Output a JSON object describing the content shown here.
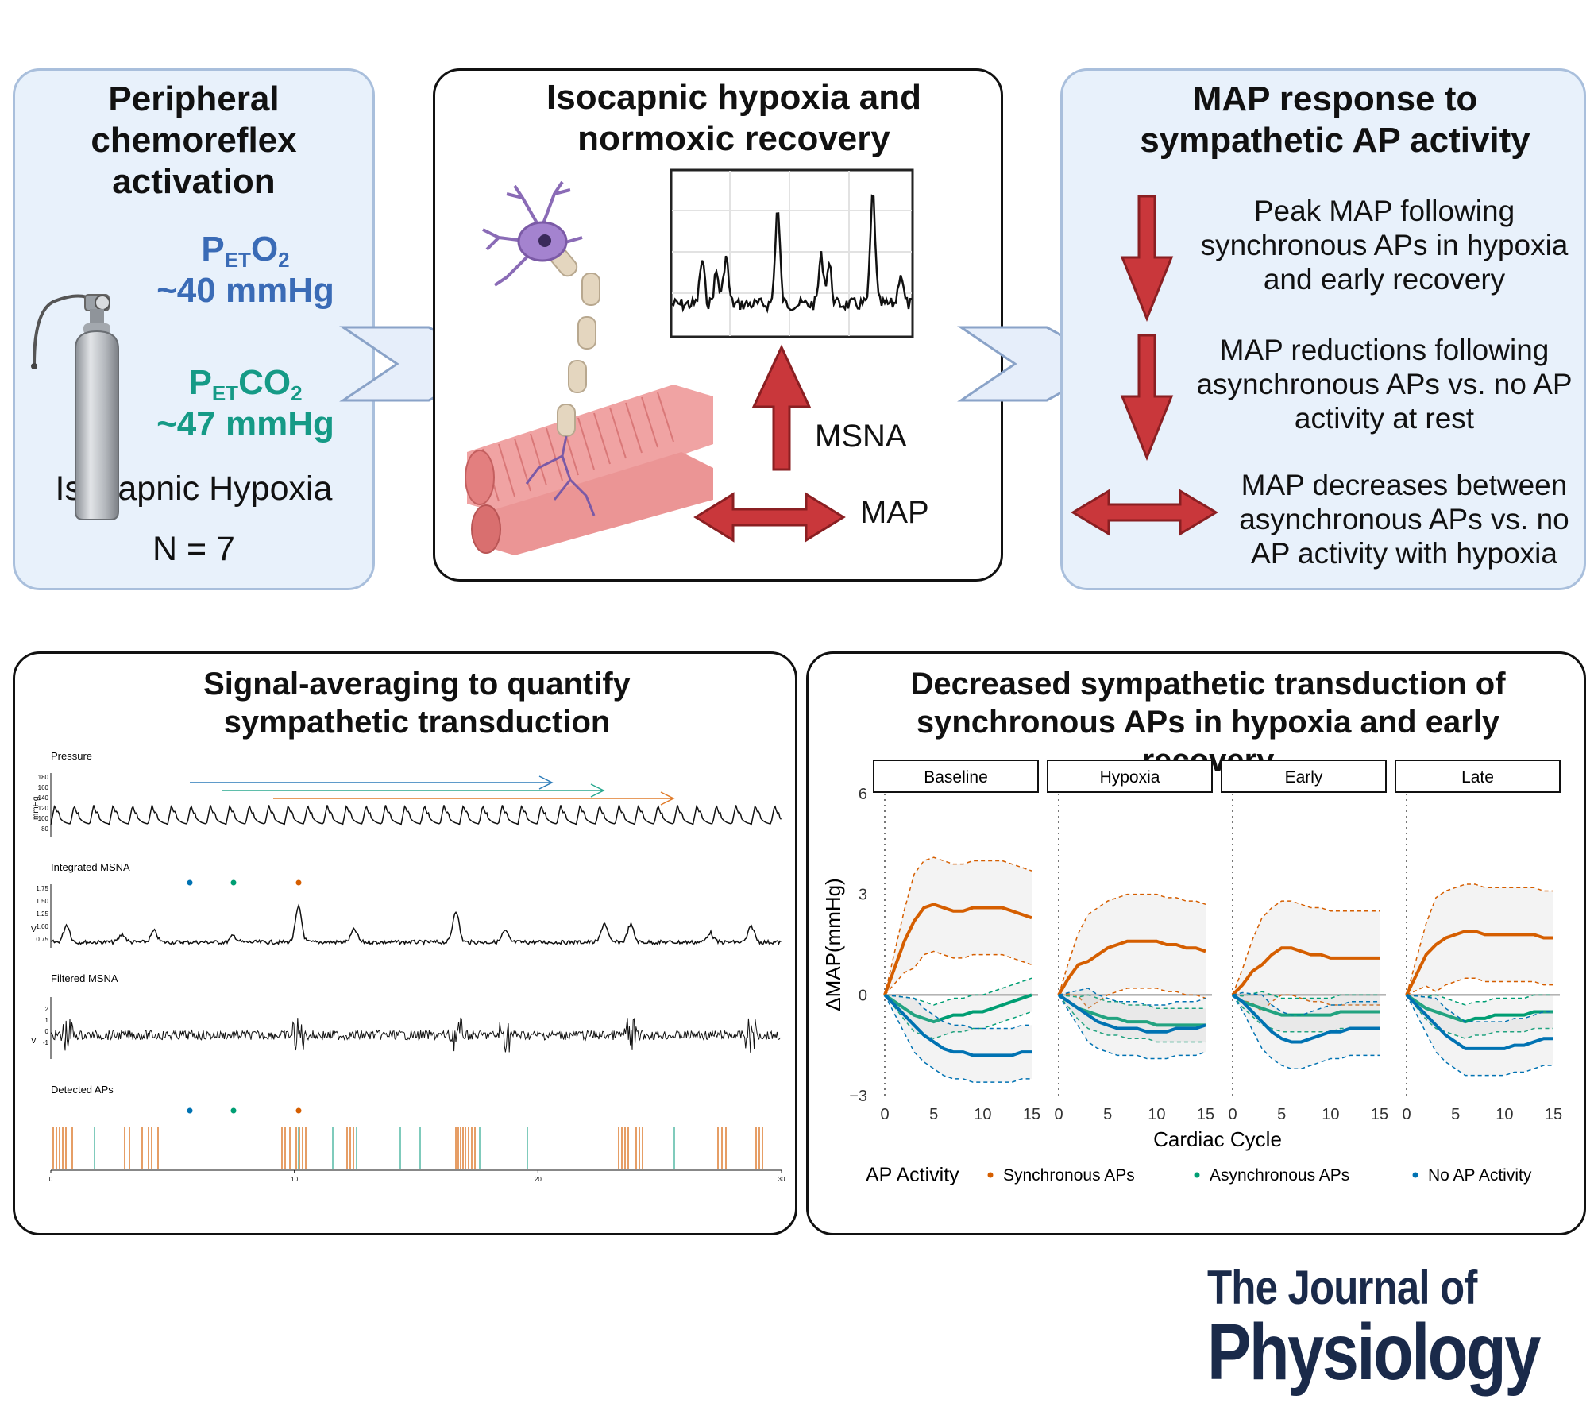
{
  "panel1": {
    "title": "Peripheral chemoreflex activation",
    "peto2_prefix": "P",
    "peto2_sub": "ET",
    "peto2_gas": "O",
    "peto2_gas_sub": "2",
    "peto2_value": "~40 mmHg",
    "petco2_prefix": "P",
    "petco2_sub": "ET",
    "petco2_gas": "CO",
    "petco2_gas_sub": "2",
    "petco2_value": "~47 mmHg",
    "condition": "Isocapnic Hypoxia",
    "n": "N = 7",
    "colors": {
      "o2": "#3a6bb6",
      "co2": "#159a86"
    }
  },
  "panel2": {
    "title": "Isocapnic hypoxia and normoxic recovery",
    "msna_label": "MSNA",
    "map_label": "MAP"
  },
  "panel3": {
    "title": "MAP response to sympathetic AP activity",
    "finding1": "Peak MAP following synchronous APs in hypoxia and early recovery",
    "finding2": "MAP reductions following asynchronous APs vs. no AP activity at rest",
    "finding3": "MAP decreases between asynchronous APs vs. no AP activity with hypoxia"
  },
  "panel4": {
    "title": "Signal-averaging to quantify sympathetic transduction",
    "traces": {
      "pressure": "Pressure",
      "pressure_unit": "mmHg",
      "pressure_ticks": [
        "180",
        "160",
        "140",
        "120",
        "100",
        "80"
      ],
      "integrated": "Integrated MSNA",
      "integrated_unit": "V",
      "integrated_ticks": [
        "1.75",
        "1.50",
        "1.25",
        "1.00",
        "0.75"
      ],
      "filtered": "Filtered MSNA",
      "filtered_unit": "V",
      "filtered_ticks": [
        "2",
        "1",
        "0",
        "-1"
      ],
      "detected": "Detected APs",
      "time_ticks": [
        "0",
        "10",
        "20",
        "30"
      ]
    }
  },
  "panel5": {
    "title": "Decreased sympathetic transduction of synchronous APs in hypoxia and early recovery"
  },
  "chart_data": {
    "type": "line",
    "facets": [
      "Baseline",
      "Hypoxia",
      "Early",
      "Late"
    ],
    "xlabel": "Cardiac Cycle",
    "ylabel": "ΔMAP(mmHg)",
    "xlim": [
      0,
      15
    ],
    "ylim": [
      -3,
      6
    ],
    "x_ticks": [
      "0",
      "5",
      "10",
      "15"
    ],
    "y_ticks": [
      "6",
      "3",
      "0",
      "−3"
    ],
    "x": [
      0,
      1,
      2,
      3,
      4,
      5,
      6,
      7,
      8,
      9,
      10,
      11,
      12,
      13,
      14,
      15
    ],
    "legend_title": "AP Activity",
    "legend_position": "bottom",
    "series": [
      {
        "name": "Synchronous APs",
        "color": "#d55e00",
        "values": [
          [
            0,
            0.8,
            1.6,
            2.2,
            2.6,
            2.7,
            2.6,
            2.5,
            2.5,
            2.6,
            2.6,
            2.6,
            2.6,
            2.5,
            2.4,
            2.3
          ],
          [
            0,
            0.5,
            0.9,
            1.0,
            1.2,
            1.4,
            1.5,
            1.6,
            1.6,
            1.6,
            1.6,
            1.5,
            1.5,
            1.4,
            1.4,
            1.3
          ],
          [
            0,
            0.3,
            0.7,
            0.9,
            1.2,
            1.4,
            1.4,
            1.3,
            1.2,
            1.2,
            1.1,
            1.1,
            1.1,
            1.1,
            1.1,
            1.1
          ],
          [
            0,
            0.6,
            1.2,
            1.5,
            1.7,
            1.8,
            1.9,
            1.9,
            1.8,
            1.8,
            1.8,
            1.8,
            1.8,
            1.8,
            1.7,
            1.7
          ]
        ]
      },
      {
        "name": "Asynchronous APs",
        "color": "#009e73",
        "values": [
          [
            0,
            -0.2,
            -0.4,
            -0.6,
            -0.7,
            -0.8,
            -0.7,
            -0.6,
            -0.6,
            -0.5,
            -0.5,
            -0.4,
            -0.3,
            -0.2,
            -0.1,
            0
          ],
          [
            0,
            -0.2,
            -0.4,
            -0.5,
            -0.6,
            -0.7,
            -0.7,
            -0.8,
            -0.8,
            -0.8,
            -0.9,
            -0.9,
            -0.9,
            -0.9,
            -0.9,
            -0.9
          ],
          [
            0,
            -0.2,
            -0.3,
            -0.4,
            -0.5,
            -0.6,
            -0.6,
            -0.6,
            -0.6,
            -0.6,
            -0.6,
            -0.5,
            -0.5,
            -0.5,
            -0.5,
            -0.5
          ],
          [
            0,
            -0.2,
            -0.4,
            -0.5,
            -0.6,
            -0.7,
            -0.8,
            -0.7,
            -0.7,
            -0.6,
            -0.6,
            -0.6,
            -0.6,
            -0.5,
            -0.5,
            -0.5
          ]
        ]
      },
      {
        "name": "No AP Activity",
        "color": "#0072b2",
        "values": [
          [
            0,
            -0.3,
            -0.6,
            -0.9,
            -1.2,
            -1.4,
            -1.6,
            -1.7,
            -1.7,
            -1.8,
            -1.8,
            -1.8,
            -1.8,
            -1.8,
            -1.7,
            -1.7
          ],
          [
            0,
            -0.2,
            -0.4,
            -0.6,
            -0.8,
            -0.9,
            -1.0,
            -1.0,
            -1.0,
            -1.1,
            -1.1,
            -1.1,
            -1.0,
            -1.0,
            -1.0,
            -0.9
          ],
          [
            0,
            -0.2,
            -0.5,
            -0.8,
            -1.1,
            -1.3,
            -1.4,
            -1.4,
            -1.3,
            -1.2,
            -1.1,
            -1.1,
            -1.0,
            -1.0,
            -1.0,
            -1.0
          ],
          [
            0,
            -0.3,
            -0.6,
            -0.9,
            -1.2,
            -1.4,
            -1.6,
            -1.6,
            -1.6,
            -1.6,
            -1.6,
            -1.5,
            -1.5,
            -1.4,
            -1.3,
            -1.3
          ]
        ]
      }
    ]
  },
  "journal": {
    "line1": "The Journal of",
    "line2": "Physiology",
    "color": "#1a2a4a"
  },
  "arrow_colors": {
    "down": "#c9373b",
    "outline": "#8a1f22",
    "chevron_fill": "#e6eefa",
    "chevron_stroke": "#8aa3c8"
  }
}
